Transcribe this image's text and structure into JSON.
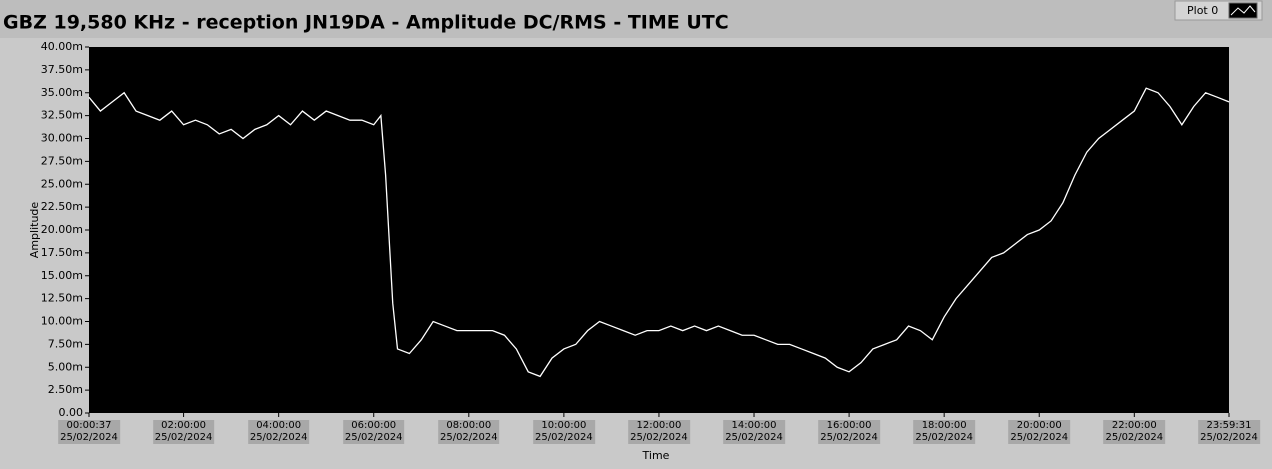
{
  "chart_data": {
    "type": "line",
    "title": "GBZ  19,580 KHz - reception JN19DA -  Amplitude DC/RMS   - TIME UTC",
    "ylabel": "Amplitude",
    "xlabel": "Time",
    "x": [
      37,
      900,
      1800,
      2700,
      3600,
      4500,
      5400,
      6300,
      7200,
      8100,
      9000,
      9900,
      10800,
      11700,
      12600,
      13500,
      14400,
      15300,
      16200,
      17100,
      18000,
      18900,
      19800,
      20700,
      21600,
      22140,
      22500,
      23040,
      23400,
      24300,
      25200,
      26100,
      27000,
      27900,
      28800,
      29700,
      30600,
      31500,
      32400,
      33300,
      34200,
      35100,
      36000,
      36900,
      37800,
      38700,
      39600,
      40500,
      41400,
      42300,
      43200,
      44100,
      45000,
      45900,
      46800,
      47700,
      48600,
      49500,
      50400,
      51300,
      52200,
      53100,
      54000,
      54900,
      55800,
      56700,
      57600,
      58500,
      59400,
      60300,
      61200,
      62100,
      63000,
      63900,
      64800,
      65700,
      66600,
      67500,
      68400,
      69300,
      70200,
      71100,
      72000,
      72900,
      73800,
      74700,
      75600,
      76500,
      77400,
      78300,
      79200,
      80100,
      81000,
      81900,
      82800,
      83700,
      84600,
      85500,
      86371
    ],
    "series": [
      {
        "name": "Plot 0",
        "color": "#ffffff",
        "values": [
          34.5,
          33,
          34,
          35,
          33,
          32.5,
          32,
          33,
          31.5,
          32,
          31.5,
          30.5,
          31,
          30,
          31,
          31.5,
          32.5,
          31.5,
          33,
          32,
          33,
          32.5,
          32,
          32,
          31.5,
          32.5,
          26,
          12,
          7,
          6.5,
          8,
          10,
          9.5,
          9,
          9,
          9,
          9,
          8.5,
          7,
          4.5,
          4,
          6,
          7,
          7.5,
          9,
          10,
          9.5,
          9,
          8.5,
          9,
          9,
          9.5,
          9,
          9.5,
          9,
          9.5,
          9,
          8.5,
          8.5,
          8,
          7.5,
          7.5,
          7,
          6.5,
          6,
          5,
          4.5,
          5.5,
          7,
          7.5,
          8,
          9.5,
          9,
          8,
          10.5,
          12.5,
          14,
          15.5,
          17,
          17.5,
          18.5,
          19.5,
          20,
          21,
          23,
          26,
          28.5,
          30,
          31,
          32,
          33,
          35.5,
          35,
          33.5,
          31.5,
          33.5,
          35,
          34.5,
          34
        ]
      }
    ],
    "xlim": [
      37,
      86371
    ],
    "xticks": [
      {
        "value": 37,
        "label": "00:00:37\n25/02/2024"
      },
      {
        "value": 7200,
        "label": "02:00:00\n25/02/2024"
      },
      {
        "value": 14400,
        "label": "04:00:00\n25/02/2024"
      },
      {
        "value": 21600,
        "label": "06:00:00\n25/02/2024"
      },
      {
        "value": 28800,
        "label": "08:00:00\n25/02/2024"
      },
      {
        "value": 36000,
        "label": "10:00:00\n25/02/2024"
      },
      {
        "value": 43200,
        "label": "12:00:00\n25/02/2024"
      },
      {
        "value": 50400,
        "label": "14:00:00\n25/02/2024"
      },
      {
        "value": 57600,
        "label": "16:00:00\n25/02/2024"
      },
      {
        "value": 64800,
        "label": "18:00:00\n25/02/2024"
      },
      {
        "value": 72000,
        "label": "20:00:00\n25/02/2024"
      },
      {
        "value": 79200,
        "label": "22:00:00\n25/02/2024"
      },
      {
        "value": 86371,
        "label": "23:59:31\n25/02/2024"
      }
    ],
    "ylim": [
      0,
      40
    ],
    "yticks": [
      {
        "value": 0,
        "label": "0.00"
      },
      {
        "value": 2.5,
        "label": "2.50m"
      },
      {
        "value": 5,
        "label": "5.00m"
      },
      {
        "value": 7.5,
        "label": "7.50m"
      },
      {
        "value": 10,
        "label": "10.00m"
      },
      {
        "value": 12.5,
        "label": "12.50m"
      },
      {
        "value": 15,
        "label": "15.00m"
      },
      {
        "value": 17.5,
        "label": "17.50m"
      },
      {
        "value": 20,
        "label": "20.00m"
      },
      {
        "value": 22.5,
        "label": "22.50m"
      },
      {
        "value": 25,
        "label": "25.00m"
      },
      {
        "value": 27.5,
        "label": "27.50m"
      },
      {
        "value": 30,
        "label": "30.00m"
      },
      {
        "value": 32.5,
        "label": "32.50m"
      },
      {
        "value": 35,
        "label": "35.00m"
      },
      {
        "value": 37.5,
        "label": "37.50m"
      },
      {
        "value": 40,
        "label": "40.00m"
      }
    ],
    "grid": false
  }
}
